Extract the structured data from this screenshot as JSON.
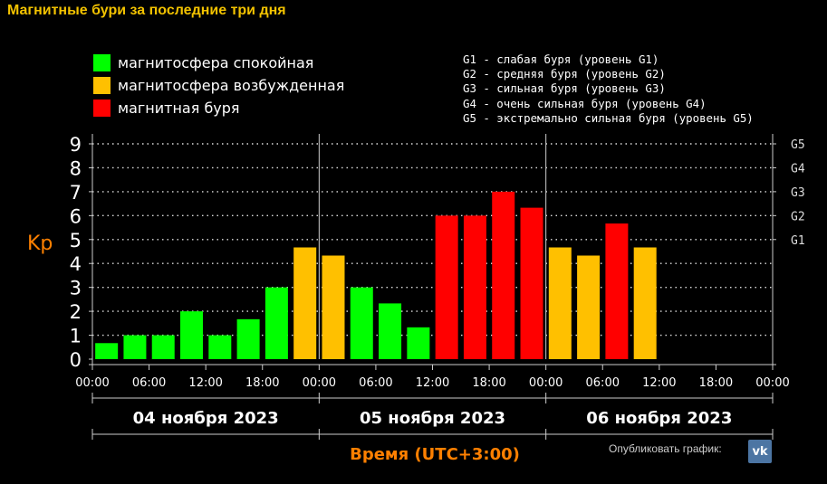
{
  "title": "Магнитные бури за последние три дня",
  "legend": [
    {
      "label": "магнитосфера спокойная",
      "color": "#00ff00"
    },
    {
      "label": "магнитосфера возбужденная",
      "color": "#ffc000"
    },
    {
      "label": "магнитная буря",
      "color": "#ff0000"
    }
  ],
  "g_legend": [
    "G1 - слабая буря (уровень G1)",
    "G2 - средняя буря (уровень G2)",
    "G3 - сильная буря (уровень G3)",
    "G4 - очень сильная буря (уровень G4)",
    "G5 - экстремально сильная буря (уровень G5)"
  ],
  "publish_label": "Опубликовать график:",
  "vk_icon": "vk-logo-icon",
  "chart_data": {
    "type": "bar",
    "ylabel": "Kp",
    "xlabel": "Время (UTC+3:00)",
    "ylim": [
      0,
      9
    ],
    "yticks": [
      "0",
      "1",
      "2",
      "3",
      "4",
      "5",
      "6",
      "7",
      "8",
      "9"
    ],
    "g_levels": [
      {
        "label": "G1",
        "kp": 5
      },
      {
        "label": "G2",
        "kp": 6
      },
      {
        "label": "G3",
        "kp": 7
      },
      {
        "label": "G4",
        "kp": 8
      },
      {
        "label": "G5",
        "kp": 9
      }
    ],
    "x_tick_labels": [
      "00:00",
      "06:00",
      "12:00",
      "18:00",
      "00:00",
      "06:00",
      "12:00",
      "18:00",
      "00:00",
      "06:00",
      "12:00",
      "18:00",
      "00:00"
    ],
    "days": [
      "04 ноября 2023",
      "05 ноября 2023",
      "06 ноября 2023"
    ],
    "grid": true,
    "colors": {
      "calm": "#00ff00",
      "excited": "#ffc000",
      "storm": "#ff0000"
    },
    "bars": [
      {
        "day": 0,
        "hour": 1.5,
        "kp": 0.67,
        "level": "calm"
      },
      {
        "day": 0,
        "hour": 4.5,
        "kp": 1.0,
        "level": "calm"
      },
      {
        "day": 0,
        "hour": 7.5,
        "kp": 1.0,
        "level": "calm"
      },
      {
        "day": 0,
        "hour": 10.5,
        "kp": 2.0,
        "level": "calm"
      },
      {
        "day": 0,
        "hour": 13.5,
        "kp": 1.0,
        "level": "calm"
      },
      {
        "day": 0,
        "hour": 16.5,
        "kp": 1.67,
        "level": "calm"
      },
      {
        "day": 0,
        "hour": 19.5,
        "kp": 3.0,
        "level": "calm"
      },
      {
        "day": 0,
        "hour": 22.5,
        "kp": 4.67,
        "level": "excited"
      },
      {
        "day": 1,
        "hour": 1.5,
        "kp": 4.33,
        "level": "excited"
      },
      {
        "day": 1,
        "hour": 4.5,
        "kp": 3.0,
        "level": "calm"
      },
      {
        "day": 1,
        "hour": 7.5,
        "kp": 2.33,
        "level": "calm"
      },
      {
        "day": 1,
        "hour": 10.5,
        "kp": 1.33,
        "level": "calm"
      },
      {
        "day": 1,
        "hour": 13.5,
        "kp": 6.0,
        "level": "storm"
      },
      {
        "day": 1,
        "hour": 16.5,
        "kp": 6.0,
        "level": "storm"
      },
      {
        "day": 1,
        "hour": 19.5,
        "kp": 7.0,
        "level": "storm"
      },
      {
        "day": 1,
        "hour": 22.5,
        "kp": 6.33,
        "level": "storm"
      },
      {
        "day": 2,
        "hour": 1.5,
        "kp": 4.67,
        "level": "excited"
      },
      {
        "day": 2,
        "hour": 4.5,
        "kp": 4.33,
        "level": "excited"
      },
      {
        "day": 2,
        "hour": 7.5,
        "kp": 5.67,
        "level": "storm"
      },
      {
        "day": 2,
        "hour": 10.5,
        "kp": 4.67,
        "level": "excited"
      }
    ]
  }
}
